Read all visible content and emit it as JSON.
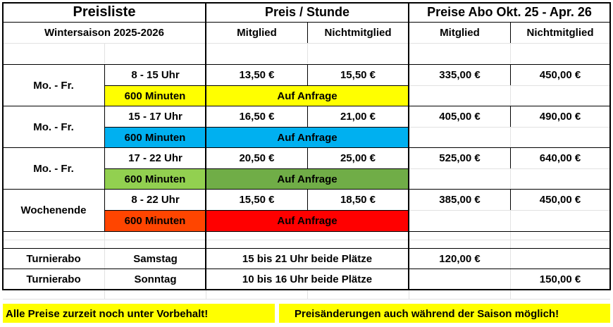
{
  "header": {
    "title": "Preisliste",
    "season": "Wintersaison 2025-2026",
    "col_price_hour": "Preis / Stunde",
    "col_abo": "Preise Abo Okt. 25 - Apr. 26",
    "member": "Mitglied",
    "nonmember": "Nichtmitglied"
  },
  "blocks": [
    {
      "day": "Mo. - Fr.",
      "time": "8 - 15 Uhr",
      "m": "13,50 €",
      "nm": "15,50 €",
      "abo_m": "335,00 €",
      "abo_nm": "450,00 €",
      "minutes": "600 Minuten",
      "request": "Auf Anfrage"
    },
    {
      "day": "Mo. - Fr.",
      "time": "15 - 17 Uhr",
      "m": "16,50 €",
      "nm": "21,00 €",
      "abo_m": "405,00 €",
      "abo_nm": "490,00 €",
      "minutes": "600 Minuten",
      "request": "Auf Anfrage"
    },
    {
      "day": "Mo. - Fr.",
      "time": "17 - 22 Uhr",
      "m": "20,50 €",
      "nm": "25,00 €",
      "abo_m": "525,00 €",
      "abo_nm": "640,00 €",
      "minutes": "600 Minuten",
      "request": "Auf Anfrage"
    },
    {
      "day": "Wochenende",
      "time": "8 - 22 Uhr",
      "m": "15,50 €",
      "nm": "18,50 €",
      "abo_m": "385,00 €",
      "abo_nm": "450,00 €",
      "minutes": "600 Minuten",
      "request": "Auf Anfrage"
    }
  ],
  "tournament": [
    {
      "name": "Turnierabo",
      "day": "Samstag",
      "desc": "15 bis 21 Uhr beide Plätze",
      "abo_m": "120,00 €",
      "abo_nm": ""
    },
    {
      "name": "Turnierabo",
      "day": "Sonntag",
      "desc": "10 bis 16 Uhr beide Plätze",
      "abo_m": "",
      "abo_nm": "150,00 €"
    }
  ],
  "footer": {
    "left": "Alle Preise zurzeit noch unter Vorbehalt!",
    "right": "Preisänderungen auch während der Saison möglich!"
  },
  "colors": {
    "block1": "#ffff00",
    "block2": "#00b0f0",
    "block3_minutes": "#92d050",
    "block3_request": "#70ad47",
    "block4_minutes": "#ff4500",
    "block4_request": "#ff0000"
  }
}
